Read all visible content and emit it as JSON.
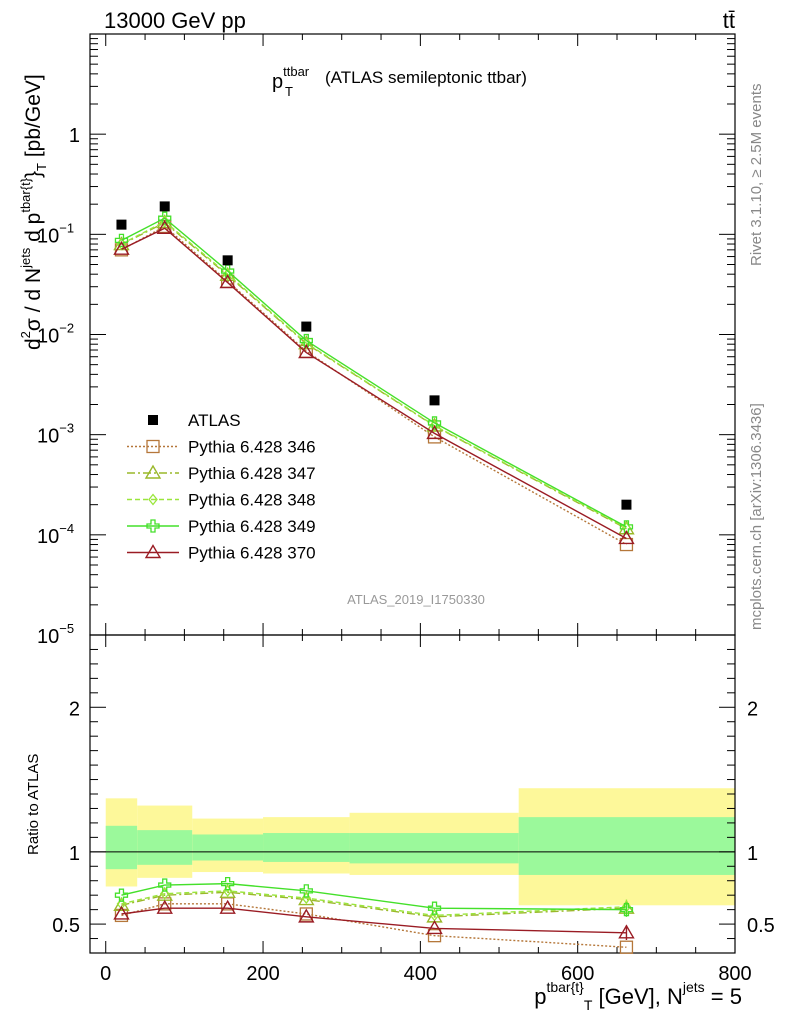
{
  "header": {
    "left_label": "13000 GeV pp",
    "right_label": "tt̄"
  },
  "side_labels": {
    "rivet": "Rivet 3.1.10, ≥ 2.5M events",
    "mcplots": "mcplots.cern.ch [arXiv:1306.3436]"
  },
  "chart_data": {
    "type": "line",
    "title": "(ATLAS semileptonic ttbar)",
    "title_symbol": "p",
    "title_sub": "T",
    "title_sup": "ttbar",
    "analysis_id": "ATLAS_2019_I1750330",
    "x_axis": {
      "label_p": "p",
      "label_sup": "tbar{t}",
      "label_sub": "T",
      "label_units": " [GeV], N",
      "label_njets_sup": "jets",
      "label_tail": " = 5",
      "xlim": [
        -20,
        800
      ],
      "tick_values": [
        0,
        200,
        400,
        600,
        800
      ],
      "tick_labels": [
        "0",
        "200",
        "400",
        "600",
        "800"
      ]
    },
    "main_panel": {
      "scale": "log",
      "ylim": [
        1e-05,
        10
      ],
      "ylabel_parts": {
        "d2": "d",
        "d2_sup": "2",
        "sigma": "σ / d N",
        "njets_sup": "jets",
        "dp": " d p",
        "dp_sup": "tbar{t}",
        "sub": "}",
        "sub2": "T",
        "units": " [pb/GeV]"
      },
      "y_ticks": [
        {
          "value": 1e-05,
          "base": "10",
          "exp": "−5"
        },
        {
          "value": 0.0001,
          "base": "10",
          "exp": "−4"
        },
        {
          "value": 0.001,
          "base": "10",
          "exp": "−3"
        },
        {
          "value": 0.01,
          "base": "10",
          "exp": "−2"
        },
        {
          "value": 0.1,
          "base": "10",
          "exp": "−1"
        },
        {
          "value": 1,
          "base": "1",
          "exp": ""
        }
      ],
      "series": [
        {
          "name": "ATLAS",
          "kind": "data",
          "color": "#000000",
          "marker": "square",
          "dash": "",
          "x": [
            20,
            75,
            155,
            255,
            418,
            662
          ],
          "y": [
            0.125,
            0.19,
            0.055,
            0.012,
            0.0022,
            0.0002
          ]
        },
        {
          "name": "Pythia 6.428 346",
          "color": "#b5773a",
          "marker": "square-open",
          "dash": "2,2",
          "x": [
            20,
            75,
            155,
            255,
            418,
            662
          ],
          "y": [
            0.07,
            0.12,
            0.034,
            0.0068,
            0.00095,
            8e-05
          ]
        },
        {
          "name": "Pythia 6.428 347",
          "color": "#9ab82a",
          "marker": "triangle-open",
          "dash": "8,3,2,3",
          "x": [
            20,
            75,
            155,
            255,
            418,
            662
          ],
          "y": [
            0.079,
            0.131,
            0.039,
            0.0081,
            0.00122,
            0.000115
          ]
        },
        {
          "name": "Pythia 6.428 348",
          "color": "#9ae63c",
          "marker": "diamond-open",
          "dash": "5,3",
          "x": [
            20,
            75,
            155,
            255,
            418,
            662
          ],
          "y": [
            0.08,
            0.134,
            0.04,
            0.0082,
            0.00123,
            0.000117
          ]
        },
        {
          "name": "Pythia 6.428 349",
          "color": "#44e02a",
          "marker": "cross-open",
          "dash": "",
          "x": [
            20,
            75,
            155,
            255,
            418,
            662
          ],
          "y": [
            0.087,
            0.145,
            0.043,
            0.0087,
            0.00131,
            0.00012
          ]
        },
        {
          "name": "Pythia 6.428 370",
          "color": "#9a1c24",
          "marker": "triangle-open",
          "dash": "",
          "x": [
            20,
            75,
            155,
            255,
            418,
            662
          ],
          "y": [
            0.071,
            0.115,
            0.033,
            0.0066,
            0.00103,
            9.2e-05
          ]
        }
      ]
    },
    "ratio_panel": {
      "ylabel": "Ratio to ATLAS",
      "ylim": [
        0.3,
        2.5
      ],
      "y_ticks": [
        {
          "value": 0.5,
          "label": "0.5"
        },
        {
          "value": 1,
          "label": "1"
        },
        {
          "value": 2,
          "label": "2"
        }
      ],
      "bands": [
        {
          "x0": 0,
          "x1": 40,
          "yellow": [
            0.76,
            1.37
          ],
          "green": [
            0.88,
            1.18
          ]
        },
        {
          "x0": 40,
          "x1": 110,
          "yellow": [
            0.82,
            1.32
          ],
          "green": [
            0.91,
            1.15
          ]
        },
        {
          "x0": 110,
          "x1": 200,
          "yellow": [
            0.86,
            1.23
          ],
          "green": [
            0.94,
            1.12
          ]
        },
        {
          "x0": 200,
          "x1": 310,
          "yellow": [
            0.85,
            1.24
          ],
          "green": [
            0.93,
            1.13
          ]
        },
        {
          "x0": 310,
          "x1": 525,
          "yellow": [
            0.84,
            1.27
          ],
          "green": [
            0.92,
            1.13
          ]
        },
        {
          "x0": 525,
          "x1": 800,
          "yellow": [
            0.63,
            1.44
          ],
          "green": [
            0.84,
            1.24
          ]
        }
      ],
      "series": [
        {
          "name": "Pythia 6.428 346",
          "y": [
            0.56,
            0.64,
            0.64,
            0.57,
            0.42,
            0.34
          ],
          "err_last": 0
        },
        {
          "name": "Pythia 6.428 347",
          "y": [
            0.63,
            0.7,
            0.72,
            0.67,
            0.55,
            0.61
          ],
          "err_last": 0.05
        },
        {
          "name": "Pythia 6.428 348",
          "y": [
            0.64,
            0.71,
            0.73,
            0.68,
            0.56,
            0.62
          ],
          "err_last": 0.05
        },
        {
          "name": "Pythia 6.428 349",
          "y": [
            0.7,
            0.77,
            0.78,
            0.73,
            0.61,
            0.6
          ],
          "err_last": 0.05
        },
        {
          "name": "Pythia 6.428 370",
          "y": [
            0.57,
            0.61,
            0.61,
            0.55,
            0.47,
            0.44
          ],
          "err_last": 0.05
        }
      ]
    },
    "legend_position": "lower-left"
  }
}
